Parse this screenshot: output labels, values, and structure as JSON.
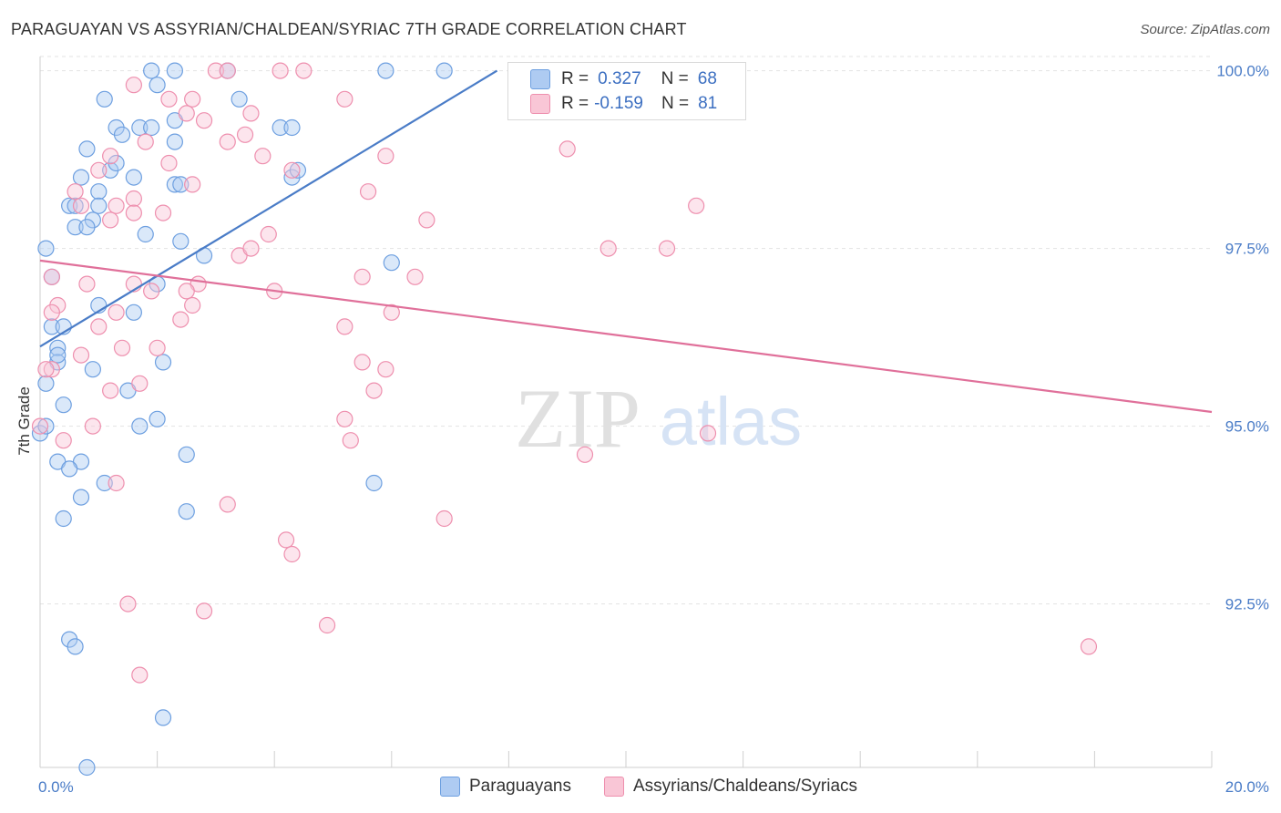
{
  "title": "PARAGUAYAN VS ASSYRIAN/CHALDEAN/SYRIAC 7TH GRADE CORRELATION CHART",
  "source": "Source: ZipAtlas.com",
  "watermark": {
    "zip": "ZIP",
    "atlas": "atlas"
  },
  "legend": {
    "r_label": "R =",
    "n_label": "N =",
    "series": [
      {
        "r": "0.327",
        "n": "68",
        "fill": "#aecbf2",
        "stroke": "#6d9fe0"
      },
      {
        "r": "-0.159",
        "n": "81",
        "fill": "#f9c6d6",
        "stroke": "#ee8fae"
      }
    ]
  },
  "bottom_legend": [
    "Paraguayans",
    "Assyrians/Chaldeans/Syriacs"
  ],
  "chart_data": {
    "type": "scatter",
    "title": "PARAGUAYAN VS ASSYRIAN/CHALDEAN/SYRIAC 7TH GRADE CORRELATION CHART",
    "ylabel": "7th Grade",
    "xlim": [
      0,
      20
    ],
    "ylim": [
      90.2,
      100.2
    ],
    "x_tick_labels": [
      {
        "v": 0,
        "label": "0.0%"
      },
      {
        "v": 20,
        "label": "20.0%"
      }
    ],
    "y_tick_labels": [
      {
        "v": 100,
        "label": "100.0%"
      },
      {
        "v": 97.5,
        "label": "97.5%"
      },
      {
        "v": 95,
        "label": "95.0%"
      },
      {
        "v": 92.5,
        "label": "92.5%"
      }
    ],
    "colors": {
      "blue": "#4a7cc7",
      "pink": "#e0709a",
      "grid": "#e3e3e3"
    },
    "series": [
      {
        "name": "Paraguayans",
        "color": "#6d9fe0",
        "trend": {
          "x": [
            0.0,
            7.8
          ],
          "y": [
            96.12,
            100.0
          ]
        },
        "points": [
          [
            1.9,
            100.0
          ],
          [
            2.3,
            100.0
          ],
          [
            3.2,
            100.0
          ],
          [
            5.9,
            100.0
          ],
          [
            6.9,
            100.0
          ],
          [
            2.0,
            99.8
          ],
          [
            1.1,
            99.6
          ],
          [
            3.4,
            99.6
          ],
          [
            1.3,
            99.2
          ],
          [
            1.7,
            99.2
          ],
          [
            1.9,
            99.2
          ],
          [
            2.3,
            99.3
          ],
          [
            4.1,
            99.2
          ],
          [
            1.4,
            99.1
          ],
          [
            2.3,
            99.0
          ],
          [
            0.8,
            98.9
          ],
          [
            4.3,
            99.2
          ],
          [
            1.2,
            98.6
          ],
          [
            1.3,
            98.7
          ],
          [
            0.7,
            98.5
          ],
          [
            1.6,
            98.5
          ],
          [
            4.3,
            98.5
          ],
          [
            4.4,
            98.6
          ],
          [
            1.0,
            98.3
          ],
          [
            2.3,
            98.4
          ],
          [
            2.4,
            98.4
          ],
          [
            1.0,
            98.1
          ],
          [
            0.5,
            98.1
          ],
          [
            0.6,
            98.1
          ],
          [
            0.9,
            97.9
          ],
          [
            0.6,
            97.8
          ],
          [
            0.8,
            97.8
          ],
          [
            1.8,
            97.7
          ],
          [
            2.4,
            97.6
          ],
          [
            0.1,
            97.5
          ],
          [
            2.8,
            97.4
          ],
          [
            6.0,
            97.3
          ],
          [
            0.2,
            97.1
          ],
          [
            2.0,
            97.0
          ],
          [
            1.0,
            96.7
          ],
          [
            1.6,
            96.6
          ],
          [
            0.2,
            96.4
          ],
          [
            0.4,
            96.4
          ],
          [
            0.3,
            96.1
          ],
          [
            0.3,
            95.9
          ],
          [
            0.9,
            95.8
          ],
          [
            2.1,
            95.9
          ],
          [
            0.1,
            95.6
          ],
          [
            1.5,
            95.5
          ],
          [
            0.4,
            95.3
          ],
          [
            2.0,
            95.1
          ],
          [
            1.7,
            95.0
          ],
          [
            0.0,
            94.9
          ],
          [
            2.5,
            94.6
          ],
          [
            0.3,
            94.5
          ],
          [
            0.7,
            94.5
          ],
          [
            0.5,
            94.4
          ],
          [
            1.1,
            94.2
          ],
          [
            5.7,
            94.2
          ],
          [
            0.7,
            94.0
          ],
          [
            2.5,
            93.8
          ],
          [
            0.4,
            93.7
          ],
          [
            0.5,
            92.0
          ],
          [
            0.6,
            91.9
          ],
          [
            2.1,
            90.9
          ],
          [
            0.8,
            90.2
          ],
          [
            0.1,
            95.0
          ],
          [
            0.3,
            96.0
          ]
        ]
      },
      {
        "name": "Assyrians/Chaldeans/Syriacs",
        "color": "#ee8fae",
        "trend": {
          "x": [
            0.0,
            20.0
          ],
          "y": [
            97.33,
            95.2
          ]
        },
        "points": [
          [
            3.0,
            100.0
          ],
          [
            3.2,
            100.0
          ],
          [
            4.1,
            100.0
          ],
          [
            4.5,
            100.0
          ],
          [
            1.6,
            99.8
          ],
          [
            2.2,
            99.6
          ],
          [
            2.6,
            99.6
          ],
          [
            5.2,
            99.6
          ],
          [
            2.5,
            99.4
          ],
          [
            3.6,
            99.4
          ],
          [
            2.8,
            99.3
          ],
          [
            3.5,
            99.1
          ],
          [
            3.2,
            99.0
          ],
          [
            1.8,
            99.0
          ],
          [
            9.0,
            98.9
          ],
          [
            1.2,
            98.8
          ],
          [
            3.8,
            98.8
          ],
          [
            5.9,
            98.8
          ],
          [
            2.2,
            98.7
          ],
          [
            1.0,
            98.6
          ],
          [
            4.3,
            98.6
          ],
          [
            2.6,
            98.4
          ],
          [
            5.6,
            98.3
          ],
          [
            0.6,
            98.3
          ],
          [
            1.6,
            98.2
          ],
          [
            1.3,
            98.1
          ],
          [
            0.7,
            98.1
          ],
          [
            2.1,
            98.0
          ],
          [
            1.6,
            98.0
          ],
          [
            11.2,
            98.1
          ],
          [
            1.2,
            97.9
          ],
          [
            6.6,
            97.9
          ],
          [
            3.9,
            97.7
          ],
          [
            9.7,
            97.5
          ],
          [
            10.7,
            97.5
          ],
          [
            3.4,
            97.4
          ],
          [
            0.2,
            97.1
          ],
          [
            5.5,
            97.1
          ],
          [
            6.4,
            97.1
          ],
          [
            0.8,
            97.0
          ],
          [
            2.7,
            97.0
          ],
          [
            1.9,
            96.9
          ],
          [
            2.5,
            96.9
          ],
          [
            0.3,
            96.7
          ],
          [
            0.2,
            96.6
          ],
          [
            1.3,
            96.6
          ],
          [
            2.6,
            96.7
          ],
          [
            2.4,
            96.5
          ],
          [
            1.0,
            96.4
          ],
          [
            5.2,
            96.4
          ],
          [
            1.4,
            96.1
          ],
          [
            0.7,
            96.0
          ],
          [
            0.2,
            95.8
          ],
          [
            5.9,
            95.8
          ],
          [
            5.5,
            95.9
          ],
          [
            1.7,
            95.6
          ],
          [
            1.2,
            95.5
          ],
          [
            5.7,
            95.5
          ],
          [
            0.9,
            95.0
          ],
          [
            5.2,
            95.1
          ],
          [
            0.4,
            94.8
          ],
          [
            5.3,
            94.8
          ],
          [
            11.4,
            94.9
          ],
          [
            9.3,
            94.6
          ],
          [
            1.3,
            94.2
          ],
          [
            3.2,
            93.9
          ],
          [
            6.9,
            93.7
          ],
          [
            4.2,
            93.4
          ],
          [
            4.3,
            93.2
          ],
          [
            1.5,
            92.5
          ],
          [
            2.8,
            92.4
          ],
          [
            4.9,
            92.2
          ],
          [
            17.9,
            91.9
          ],
          [
            1.7,
            91.5
          ],
          [
            0.0,
            95.0
          ],
          [
            0.1,
            95.8
          ],
          [
            2.0,
            96.1
          ],
          [
            1.6,
            97.0
          ],
          [
            4.0,
            96.9
          ],
          [
            3.6,
            97.5
          ],
          [
            6.0,
            96.6
          ]
        ]
      }
    ]
  }
}
